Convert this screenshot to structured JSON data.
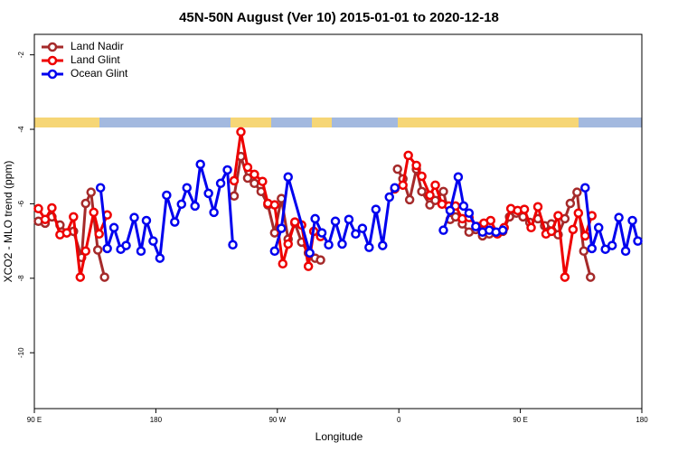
{
  "chart_data": {
    "type": "line",
    "title": "45N-50N August (Ver 10)   2015-01-01 to 2020-12-18",
    "xlabel": "Longitude",
    "ylabel": "XCO2 - MLO trend (ppm)",
    "xlim": [
      90,
      540
    ],
    "ylim": [
      -11.5,
      -1.45
    ],
    "xticks": [
      {
        "value": 90,
        "label": "90 E"
      },
      180,
      {
        "value": 270,
        "label": "90 W"
      },
      {
        "value": 360,
        "label": "0"
      },
      {
        "value": 450,
        "label": "90 E"
      },
      {
        "value": 540,
        "label": "180"
      }
    ],
    "yticks": [
      -10,
      -8,
      -6,
      -4,
      -2
    ],
    "grid": false,
    "legend": "upper left",
    "series": [
      {
        "name": "Land Nadir",
        "color": "#a52a2a",
        "x": [
          93,
          98,
          103,
          109,
          114,
          119,
          125,
          128,
          132,
          137,
          142,
          200,
          238,
          243,
          248,
          253,
          258,
          263,
          268,
          273,
          278,
          283,
          288,
          293,
          298,
          302,
          330,
          359,
          363,
          368,
          373,
          377,
          383,
          387,
          393,
          398,
          402,
          407,
          412,
          417,
          422,
          427,
          432,
          437,
          442,
          447,
          452,
          457,
          463,
          468,
          473,
          478,
          483,
          487,
          492,
          497,
          502
        ],
        "values": [
          -6.47,
          -6.52,
          -6.35,
          -6.57,
          -6.78,
          -6.74,
          -7.44,
          -5.99,
          -5.69,
          -7.24,
          -7.97,
          null,
          -5.79,
          -4.73,
          -5.31,
          -5.45,
          -5.67,
          -6.03,
          -6.78,
          -5.86,
          -6.95,
          -6.52,
          -7.03,
          -7.32,
          -7.46,
          -7.51,
          null,
          -5.07,
          -5.33,
          -5.89,
          -5.07,
          -5.67,
          -6.03,
          -5.91,
          -5.67,
          -6.42,
          -6.35,
          -6.54,
          -6.76,
          -6.69,
          -6.86,
          -6.81,
          -6.78,
          -6.74,
          -6.35,
          -6.25,
          -6.35,
          -6.5,
          -6.4,
          -6.59,
          -6.54,
          -6.83,
          -6.4,
          -5.99,
          -5.69,
          -7.27,
          -7.97
        ]
      },
      {
        "name": "Land Glint",
        "color": "#ee0000",
        "x": [
          93,
          98,
          103,
          109,
          114,
          119,
          124,
          128,
          134,
          138,
          144,
          200,
          238,
          243,
          248,
          253,
          259,
          263,
          268,
          274,
          278,
          283,
          288,
          293,
          297,
          302,
          330,
          357,
          363,
          367,
          373,
          377,
          383,
          387,
          392,
          397,
          402,
          407,
          412,
          418,
          423,
          428,
          433,
          438,
          443,
          448,
          453,
          458,
          463,
          469,
          473,
          478,
          483,
          489,
          493,
          498,
          503
        ],
        "values": [
          -6.13,
          -6.42,
          -6.11,
          -6.83,
          -6.78,
          -6.35,
          -7.97,
          -7.27,
          -6.23,
          -6.81,
          -6.3,
          null,
          -5.38,
          -4.07,
          -5.02,
          -5.21,
          -5.4,
          -5.99,
          -6.03,
          -7.61,
          -7.08,
          -6.49,
          -6.57,
          -7.68,
          -6.74,
          -6.88,
          null,
          -5.6,
          -5.5,
          -4.7,
          -4.97,
          -5.26,
          -5.77,
          -5.5,
          -6.01,
          -6.06,
          -6.06,
          -6.4,
          -6.37,
          -6.61,
          -6.52,
          -6.45,
          -6.81,
          -6.64,
          -6.13,
          -6.18,
          -6.15,
          -6.64,
          -6.08,
          -6.81,
          -6.74,
          -6.32,
          -7.97,
          -6.69,
          -6.25,
          -6.86,
          -6.32
        ]
      },
      {
        "name": "Ocean Glint",
        "color": "#0000ee",
        "x": [
          139,
          144,
          149,
          154,
          158,
          164,
          169,
          173,
          178,
          183,
          188,
          194,
          199,
          203,
          209,
          213,
          219,
          223,
          228,
          233,
          237,
          250,
          268,
          273,
          278,
          294,
          298,
          303,
          308,
          313,
          318,
          323,
          328,
          333,
          338,
          343,
          348,
          353,
          357,
          380,
          393,
          398,
          404,
          408,
          412,
          417,
          422,
          427,
          432,
          437,
          470,
          498,
          503,
          508,
          513,
          518,
          523,
          528,
          533,
          537
        ],
        "values": [
          -5.57,
          -7.2,
          -6.64,
          -7.22,
          -7.12,
          -6.37,
          -7.27,
          -6.45,
          -7.0,
          -7.46,
          -5.77,
          -6.49,
          -6.01,
          -5.57,
          -6.06,
          -4.94,
          -5.72,
          -6.23,
          -5.45,
          -5.09,
          -7.1,
          null,
          -7.27,
          -6.66,
          -5.28,
          -7.32,
          -6.4,
          -6.78,
          -7.1,
          -6.47,
          -7.08,
          -6.42,
          -6.81,
          -6.66,
          -7.17,
          -6.15,
          -7.12,
          -5.82,
          -5.57,
          null,
          -6.71,
          -6.18,
          -5.28,
          -6.06,
          -6.25,
          -6.61,
          -6.76,
          -6.71,
          -6.76,
          -6.71,
          null,
          -5.57,
          -7.2,
          -6.64,
          -7.22,
          -7.12,
          -6.37,
          -7.27,
          -6.45,
          -7.0
        ]
      }
    ]
  }
}
